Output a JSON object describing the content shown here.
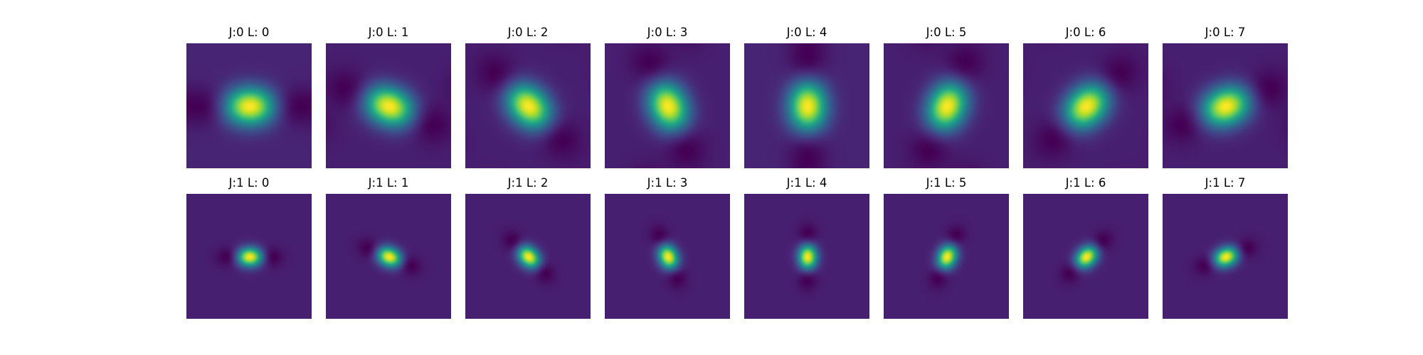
{
  "chart_data": {
    "type": "heatmap",
    "description_rows": [
      "J:0",
      "J:1"
    ],
    "colormap": "viridis",
    "grid": false,
    "panels": [
      {
        "title": "J:0 L: 0",
        "J": 0,
        "L": 0
      },
      {
        "title": "J:0 L: 1",
        "J": 0,
        "L": 1
      },
      {
        "title": "J:0 L: 2",
        "J": 0,
        "L": 2
      },
      {
        "title": "J:0 L: 3",
        "J": 0,
        "L": 3
      },
      {
        "title": "J:0 L: 4",
        "J": 0,
        "L": 4
      },
      {
        "title": "J:0 L: 5",
        "J": 0,
        "L": 5
      },
      {
        "title": "J:0 L: 6",
        "J": 0,
        "L": 6
      },
      {
        "title": "J:0 L: 7",
        "J": 0,
        "L": 7
      },
      {
        "title": "J:1 L: 0",
        "J": 1,
        "L": 0
      },
      {
        "title": "J:1 L: 1",
        "J": 1,
        "L": 1
      },
      {
        "title": "J:1 L: 2",
        "J": 1,
        "L": 2
      },
      {
        "title": "J:1 L: 3",
        "J": 1,
        "L": 3
      },
      {
        "title": "J:1 L: 4",
        "J": 1,
        "L": 4
      },
      {
        "title": "J:1 L: 5",
        "J": 1,
        "L": 5
      },
      {
        "title": "J:1 L: 6",
        "J": 1,
        "L": 6
      },
      {
        "title": "J:1 L: 7",
        "J": 1,
        "L": 7
      }
    ]
  }
}
